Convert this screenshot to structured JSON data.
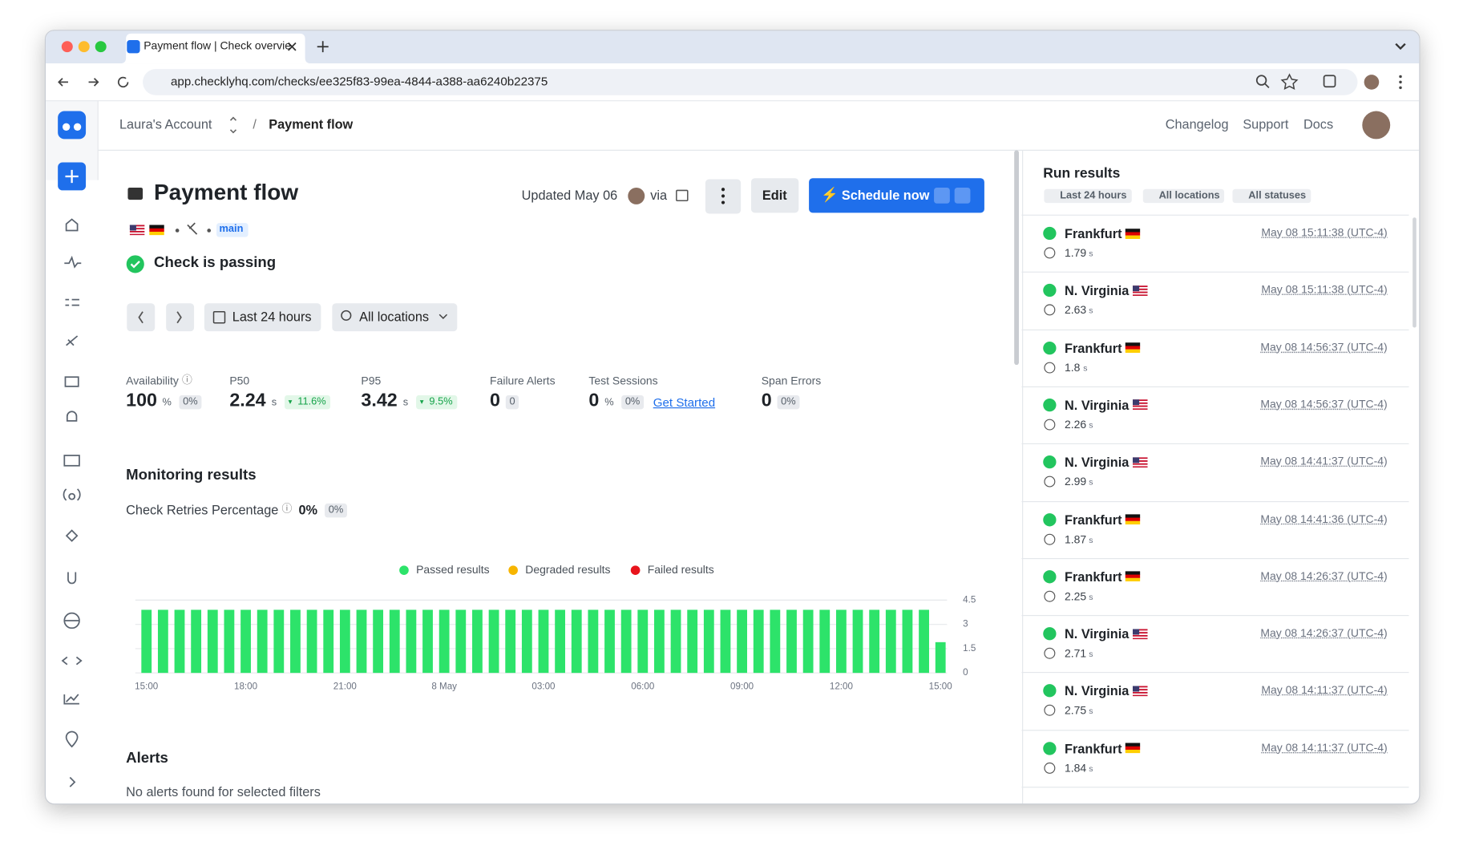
{
  "browser": {
    "tab_title": "Payment flow | Check overvie",
    "url": "app.checklyhq.com/checks/ee325f83-99ea-4844-a388-aa6240b22375"
  },
  "header": {
    "account": "Laura's Account",
    "separator": "/",
    "page": "Payment flow",
    "links": [
      "Changelog",
      "Support",
      "Docs"
    ]
  },
  "check": {
    "title": "Payment flow",
    "updated": "Updated May 06",
    "via": "via",
    "branch": "main",
    "status": "Check is passing",
    "edit": "Edit",
    "schedule": "Schedule now",
    "range": "Last 24 hours",
    "locations": "All locations"
  },
  "stats": [
    {
      "label": "Availability",
      "value": 100,
      "unit": "%",
      "delta": "0%",
      "info": true
    },
    {
      "label": "P50",
      "value": 2.24,
      "unit": "s",
      "delta": "11.6%",
      "trend": "down"
    },
    {
      "label": "P95",
      "value": 3.42,
      "unit": "s",
      "delta": "9.5%",
      "trend": "down"
    },
    {
      "label": "Failure Alerts",
      "value": 0,
      "delta": "0"
    },
    {
      "label": "Test Sessions",
      "value": 0,
      "unit": "%",
      "delta": "0%",
      "link": "Get Started"
    },
    {
      "label": "Span Errors",
      "value": 0,
      "delta": "0%"
    }
  ],
  "monitoring": {
    "title": "Monitoring results",
    "retries_label": "Check Retries Percentage",
    "retries_value": "0%",
    "retries_delta": "0%"
  },
  "chart_data": {
    "type": "bar",
    "stacked": true,
    "grid": true,
    "ylim": [
      0,
      4.5
    ],
    "yticks": [
      0,
      1.5,
      3,
      4.5
    ],
    "categories": [
      "15:00",
      null,
      null,
      null,
      null,
      null,
      "18:00",
      null,
      null,
      null,
      null,
      null,
      "21:00",
      null,
      null,
      null,
      null,
      null,
      "8 May",
      null,
      null,
      null,
      null,
      null,
      "03:00",
      null,
      null,
      null,
      null,
      null,
      "06:00",
      null,
      null,
      null,
      null,
      null,
      "09:00",
      null,
      null,
      null,
      null,
      null,
      "12:00",
      null,
      null,
      null,
      null,
      null,
      "15:00"
    ],
    "series": [
      {
        "name": "Passed results",
        "color": "#2de36a",
        "values": [
          3.9,
          3.9,
          3.9,
          3.9,
          3.9,
          3.9,
          3.9,
          3.9,
          3.9,
          3.9,
          3.9,
          3.9,
          3.9,
          3.9,
          3.9,
          3.9,
          3.9,
          3.9,
          3.9,
          3.9,
          3.9,
          3.9,
          3.9,
          3.9,
          3.9,
          3.9,
          3.9,
          3.9,
          3.9,
          3.9,
          3.9,
          3.9,
          3.9,
          3.9,
          3.9,
          3.9,
          3.9,
          3.9,
          3.9,
          3.9,
          3.9,
          3.9,
          3.9,
          3.9,
          3.9,
          3.9,
          3.9,
          3.9,
          1.9
        ]
      },
      {
        "name": "Degraded results",
        "color": "#f7b500",
        "values": [
          0,
          0,
          0,
          0,
          0,
          0,
          0,
          0,
          0,
          0,
          0,
          0,
          0,
          0,
          0,
          0,
          0,
          0,
          0,
          0,
          0,
          0,
          0,
          0,
          0,
          0,
          0,
          0,
          0,
          0,
          0,
          0,
          0,
          0,
          0,
          0,
          0,
          0,
          0,
          0,
          0,
          0,
          0,
          0,
          0,
          0,
          0,
          0,
          0
        ]
      },
      {
        "name": "Failed results",
        "color": "#e8141c",
        "values": [
          0,
          0,
          0,
          0,
          0,
          0,
          0,
          0,
          0,
          0,
          0,
          0,
          0,
          0,
          0,
          0,
          0,
          0,
          0,
          0,
          0,
          0,
          0,
          0,
          0,
          0,
          0,
          0,
          0,
          0,
          0,
          0,
          0,
          0,
          0,
          0,
          0,
          0,
          0,
          0,
          0,
          0,
          0,
          0,
          0,
          0,
          0,
          0,
          0
        ]
      }
    ]
  },
  "run_results": {
    "title": "Run results",
    "filters": [
      "Last 24 hours",
      "All locations",
      "All statuses"
    ],
    "items": [
      {
        "location": "Frankfurt",
        "flag": "de",
        "duration": 1.79,
        "unit": "s",
        "time": "May 08 15:11:38 (UTC-4)"
      },
      {
        "location": "N. Virginia",
        "flag": "us",
        "duration": 2.63,
        "unit": "s",
        "time": "May 08 15:11:38 (UTC-4)"
      },
      {
        "location": "Frankfurt",
        "flag": "de",
        "duration": 1.8,
        "unit": "s",
        "time": "May 08 14:56:37 (UTC-4)"
      },
      {
        "location": "N. Virginia",
        "flag": "us",
        "duration": 2.26,
        "unit": "s",
        "time": "May 08 14:56:37 (UTC-4)"
      },
      {
        "location": "N. Virginia",
        "flag": "us",
        "duration": 2.99,
        "unit": "s",
        "time": "May 08 14:41:37 (UTC-4)"
      },
      {
        "location": "Frankfurt",
        "flag": "de",
        "duration": 1.87,
        "unit": "s",
        "time": "May 08 14:41:36 (UTC-4)"
      },
      {
        "location": "Frankfurt",
        "flag": "de",
        "duration": 2.25,
        "unit": "s",
        "time": "May 08 14:26:37 (UTC-4)"
      },
      {
        "location": "N. Virginia",
        "flag": "us",
        "duration": 2.71,
        "unit": "s",
        "time": "May 08 14:26:37 (UTC-4)"
      },
      {
        "location": "N. Virginia",
        "flag": "us",
        "duration": 2.75,
        "unit": "s",
        "time": "May 08 14:11:37 (UTC-4)"
      },
      {
        "location": "Frankfurt",
        "flag": "de",
        "duration": 1.84,
        "unit": "s",
        "time": "May 08 14:11:37 (UTC-4)"
      }
    ]
  },
  "alerts": {
    "title": "Alerts",
    "empty": "No alerts found for selected filters"
  }
}
